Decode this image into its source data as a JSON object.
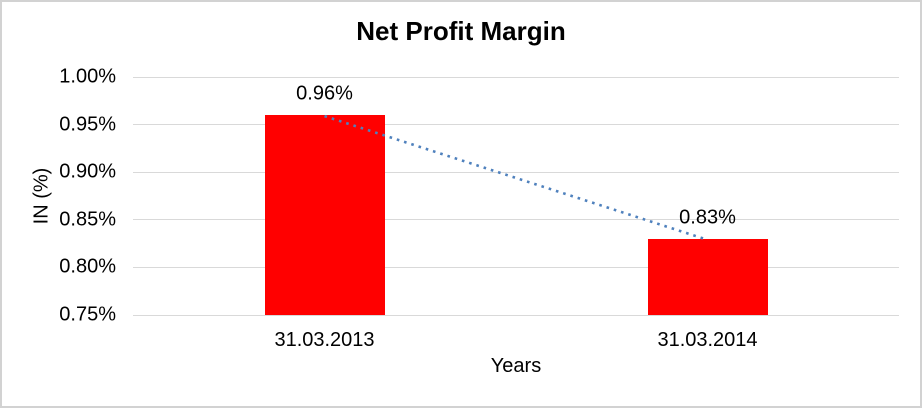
{
  "window": {
    "background_color": "#FFFFFF",
    "border_color": "#D2D2D2"
  },
  "chart_data": {
    "type": "bar",
    "title": "Net Profit Margin",
    "xlabel": "Years",
    "ylabel": "IN (%)",
    "categories": [
      "31.03.2013",
      "31.03.2014"
    ],
    "series": [
      {
        "name": "Net Profit Margin",
        "values": [
          0.96,
          0.83
        ],
        "color": "#FF0000"
      }
    ],
    "data_labels": [
      "0.96%",
      "0.83%"
    ],
    "ylim": [
      0.75,
      1.0
    ],
    "ytick_values": [
      1.0,
      0.95,
      0.9,
      0.85,
      0.8,
      0.75
    ],
    "ytick_labels": [
      "1.00%",
      "0.95%",
      "0.90%",
      "0.85%",
      "0.80%",
      "0.75%"
    ],
    "grid": true,
    "gridline_color": "#D9D9D9",
    "legend": "none",
    "trendline": {
      "type": "linear",
      "style": "dotted",
      "color": "#4F81BD",
      "from_value": 0.96,
      "to_value": 0.83
    }
  }
}
